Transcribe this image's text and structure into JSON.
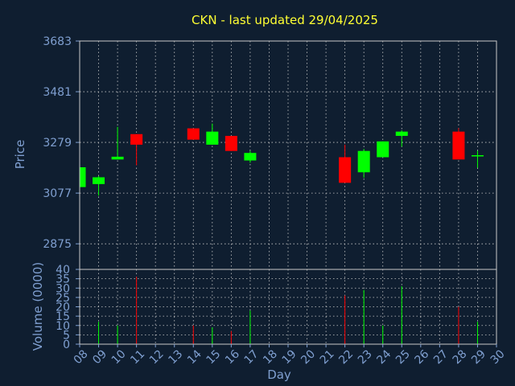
{
  "chart_data": [
    {
      "type": "candlestick",
      "title": "CKN - last updated 29/04/2025",
      "xlabel": "Day",
      "ylabel": "Price",
      "ylim": [
        2773,
        3683
      ],
      "yticks": [
        2875,
        3077,
        3279,
        3481,
        3683
      ],
      "grid": true,
      "up_color": "#00ff00",
      "down_color": "#ff0000",
      "categories": [
        "08",
        "09",
        "10",
        "11",
        "12",
        "13",
        "14",
        "15",
        "16",
        "17",
        "18",
        "19",
        "20",
        "21",
        "22",
        "23",
        "24",
        "25",
        "26",
        "27",
        "28",
        "29",
        "30"
      ],
      "candles": [
        {
          "x": "08",
          "open": 3101,
          "high": 3180,
          "low": 3101,
          "close": 3180
        },
        {
          "x": "09",
          "open": 3113,
          "high": 3145,
          "low": 3067,
          "close": 3140
        },
        {
          "x": "10",
          "open": 3211,
          "high": 3341,
          "low": 3211,
          "close": 3222
        },
        {
          "x": "11",
          "open": 3312,
          "high": 3312,
          "low": 3188,
          "close": 3270
        },
        {
          "x": "14",
          "open": 3335,
          "high": 3335,
          "low": 3290,
          "close": 3290
        },
        {
          "x": "15",
          "open": 3270,
          "high": 3354,
          "low": 3270,
          "close": 3322
        },
        {
          "x": "16",
          "open": 3305,
          "high": 3305,
          "low": 3245,
          "close": 3245
        },
        {
          "x": "17",
          "open": 3207,
          "high": 3245,
          "low": 3198,
          "close": 3237
        },
        {
          "x": "22",
          "open": 3220,
          "high": 3270,
          "low": 3118,
          "close": 3118
        },
        {
          "x": "23",
          "open": 3160,
          "high": 3253,
          "low": 3138,
          "close": 3245
        },
        {
          "x": "24",
          "open": 3220,
          "high": 3283,
          "low": 3220,
          "close": 3283
        },
        {
          "x": "25",
          "open": 3305,
          "high": 3327,
          "low": 3262,
          "close": 3322
        },
        {
          "x": "28",
          "open": 3322,
          "high": 3336,
          "low": 3211,
          "close": 3211
        },
        {
          "x": "29",
          "open": 3225,
          "high": 3246,
          "low": 3178,
          "close": 3228
        }
      ]
    },
    {
      "type": "bar",
      "xlabel": "Day",
      "ylabel": "Volume (0000)",
      "ylim": [
        0,
        40
      ],
      "yticks": [
        0,
        5,
        10,
        15,
        20,
        25,
        30,
        35,
        40
      ],
      "categories": [
        "08",
        "09",
        "10",
        "11",
        "12",
        "13",
        "14",
        "15",
        "16",
        "17",
        "18",
        "19",
        "20",
        "21",
        "22",
        "23",
        "24",
        "25",
        "26",
        "27",
        "28",
        "29",
        "30"
      ],
      "volumes": [
        {
          "x": "09",
          "value": 12,
          "color": "#00ff00"
        },
        {
          "x": "10",
          "value": 10,
          "color": "#00ff00"
        },
        {
          "x": "11",
          "value": 36,
          "color": "#ff0000"
        },
        {
          "x": "14",
          "value": 10,
          "color": "#ff0000"
        },
        {
          "x": "15",
          "value": 9,
          "color": "#00ff00"
        },
        {
          "x": "16",
          "value": 7,
          "color": "#ff0000"
        },
        {
          "x": "17",
          "value": 18,
          "color": "#00ff00"
        },
        {
          "x": "22",
          "value": 26,
          "color": "#ff0000"
        },
        {
          "x": "23",
          "value": 29,
          "color": "#00ff00"
        },
        {
          "x": "24",
          "value": 10,
          "color": "#00ff00"
        },
        {
          "x": "25",
          "value": 31,
          "color": "#00ff00"
        },
        {
          "x": "28",
          "value": 20,
          "color": "#ff0000"
        },
        {
          "x": "29",
          "value": 12,
          "color": "#00ff00"
        }
      ]
    }
  ]
}
